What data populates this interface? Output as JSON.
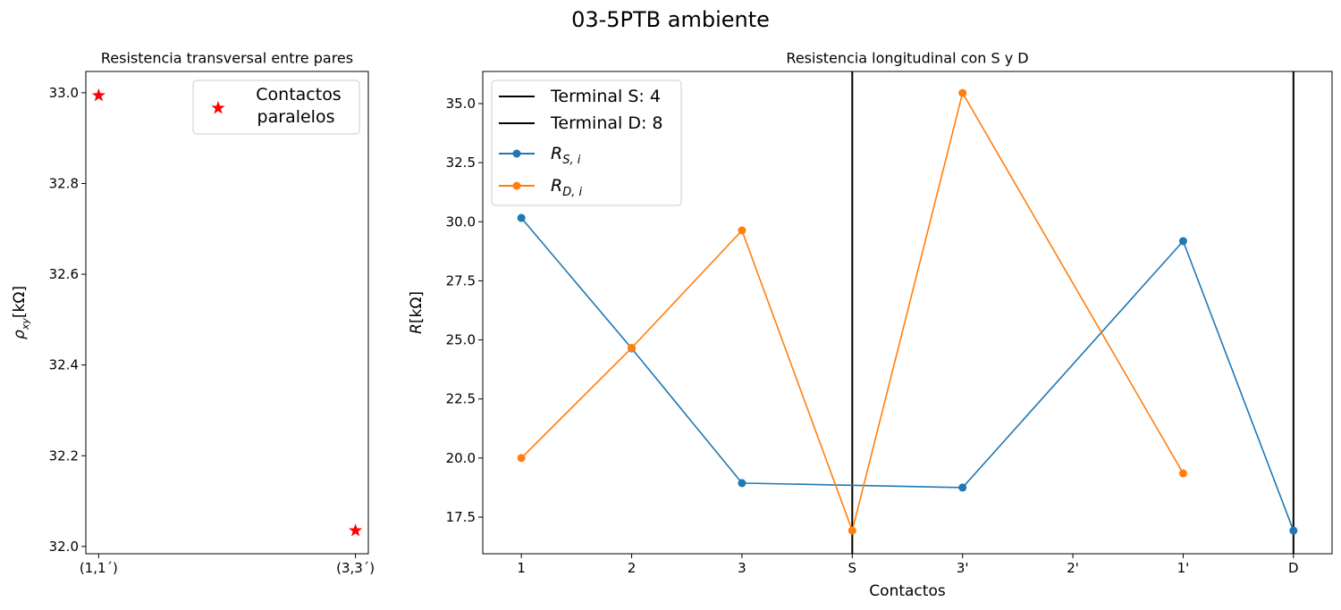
{
  "title": "03-5PTB ambiente",
  "chart_data": [
    {
      "type": "scatter",
      "title": "Resistencia transversal entre pares",
      "y_label": "ρxy[kΩ]",
      "categories": [
        "(1,1´)",
        "(3,3´)"
      ],
      "series": [
        {
          "name": "Contactos paralelos",
          "color": "#ff0000",
          "marker": "star",
          "values": [
            32.994,
            32.035
          ]
        }
      ],
      "ylim": [
        31.984,
        33.047
      ],
      "yticks": [
        {
          "value": 32.0,
          "label": "32.0"
        },
        32.2,
        32.4,
        32.6,
        32.8,
        {
          "value": 33.0,
          "label": "33.0"
        }
      ],
      "legend": "upper right"
    },
    {
      "type": "line",
      "title": "Resistencia longitudinal con S y D",
      "x_label": "Contactos",
      "y_label": "R[kΩ]",
      "categories": [
        "1",
        "2",
        "3",
        "S",
        "3'",
        "2'",
        "1'",
        "D"
      ],
      "vlines": [
        {
          "name": "Terminal S: 4",
          "x": "S",
          "color": "#000000"
        },
        {
          "name": "Terminal D: 8",
          "x": "D",
          "color": "#000000"
        }
      ],
      "series": [
        {
          "name": "RS, i",
          "color": "#1f77b4",
          "x": [
            "1",
            "2",
            "3",
            "3'",
            "1'",
            "D"
          ],
          "values": [
            30.16,
            24.64,
            18.94,
            18.75,
            29.18,
            16.93
          ]
        },
        {
          "name": "RD, i",
          "color": "#ff7f0e",
          "x": [
            "1",
            "2",
            "3",
            "S",
            "3'",
            "1'"
          ],
          "values": [
            20.0,
            24.66,
            29.63,
            16.93,
            35.45,
            19.35
          ]
        }
      ],
      "ylim": [
        15.95,
        36.36
      ],
      "yticks": [
        17.5,
        {
          "value": 20.0,
          "label": "20.0"
        },
        22.5,
        {
          "value": 25.0,
          "label": "25.0"
        },
        27.5,
        {
          "value": 30.0,
          "label": "30.0"
        },
        32.5,
        {
          "value": 35.0,
          "label": "35.0"
        }
      ],
      "legend": "upper left"
    }
  ]
}
